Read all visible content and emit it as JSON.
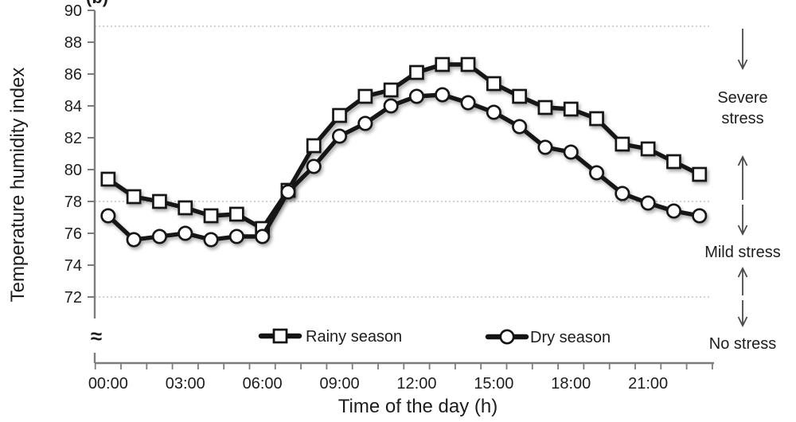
{
  "figure_label": "(b)",
  "chart_data": {
    "type": "line",
    "title": "",
    "xlabel": "Time of the day (h)",
    "ylabel": "Temperature humidity index",
    "x_hours": [
      0,
      1,
      2,
      3,
      4,
      5,
      6,
      7,
      8,
      9,
      10,
      11,
      12,
      13,
      14,
      15,
      16,
      17,
      18,
      19,
      20,
      21,
      22,
      23
    ],
    "x_tick_hours": [
      0,
      3,
      6,
      9,
      12,
      15,
      18,
      21
    ],
    "x_tick_labels": [
      "00:00",
      "03:00",
      "06:00",
      "09:00",
      "12:00",
      "15:00",
      "18:00",
      "21:00"
    ],
    "y_ticks": [
      90,
      88,
      86,
      84,
      82,
      80,
      78,
      76,
      74,
      72
    ],
    "ylim": [
      72,
      90
    ],
    "gridlines": [
      89,
      78,
      72
    ],
    "grid_style": "dotted",
    "axis_break_symbol": "≈",
    "legend_position": "bottom-inside",
    "series": [
      {
        "name": "Rainy season",
        "marker": "square",
        "values": [
          79.4,
          78.3,
          78.0,
          77.6,
          77.1,
          77.2,
          76.3,
          78.7,
          81.5,
          83.4,
          84.6,
          85.0,
          86.1,
          86.6,
          86.6,
          85.4,
          84.6,
          83.9,
          83.8,
          83.2,
          81.6,
          81.3,
          80.5,
          79.7
        ]
      },
      {
        "name": "Dry season",
        "marker": "circle",
        "values": [
          77.1,
          75.6,
          75.8,
          76.0,
          75.6,
          75.8,
          75.8,
          78.6,
          80.2,
          82.1,
          82.9,
          84.0,
          84.6,
          84.7,
          84.2,
          83.6,
          82.7,
          81.4,
          81.1,
          79.8,
          78.5,
          77.9,
          77.4,
          77.1
        ]
      }
    ],
    "annotations": [
      {
        "lines": [
          "Severe",
          "stress"
        ]
      },
      {
        "lines": [
          "Mild stress"
        ]
      },
      {
        "lines": [
          "No stress"
        ]
      }
    ],
    "colors": {
      "line": "#141414",
      "marker_fill": "#ffffff",
      "grid": "#b8b8b8",
      "axis": "#7d7d7d",
      "text": "#1d1d1d",
      "arrow": "#4a4a4a"
    }
  }
}
